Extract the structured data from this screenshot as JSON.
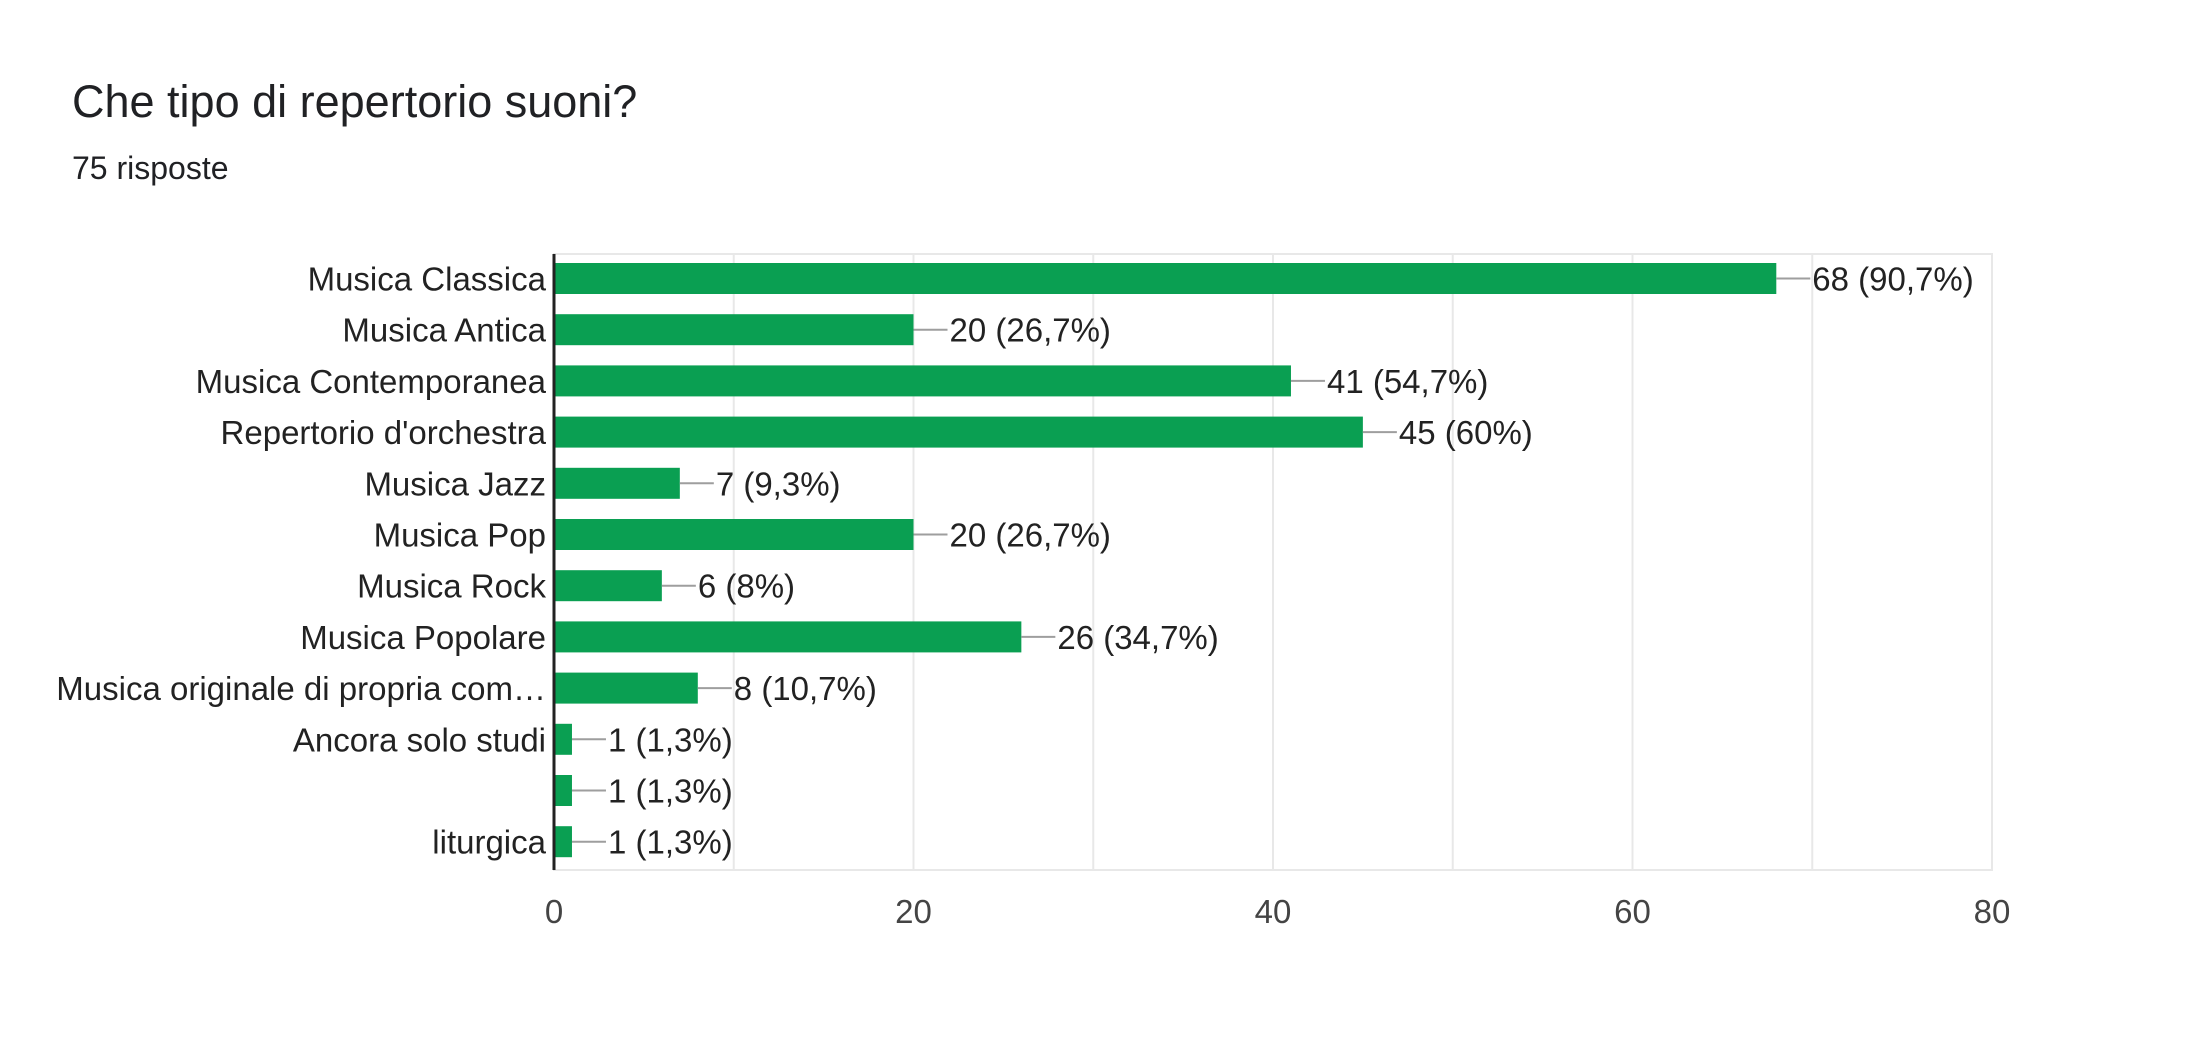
{
  "header": {
    "title": "Che tipo di repertorio suoni?",
    "subtitle": "75 risposte"
  },
  "colors": {
    "bar": "#0a9f52",
    "grid": "#e8e8e8",
    "axis": "#222222",
    "leader": "#9e9e9e"
  },
  "chart_data": {
    "type": "bar",
    "orientation": "horizontal",
    "title": "Che tipo di repertorio suoni?",
    "subtitle": "75 risposte",
    "categories": [
      "Musica Classica",
      "Musica Antica",
      "Musica Contemporanea",
      "Repertorio d'orchestra",
      "Musica Jazz",
      "Musica Pop",
      "Musica Rock",
      "Musica Popolare",
      "Musica originale di propria com…",
      "Ancora solo studi",
      "",
      "liturgica"
    ],
    "values": [
      68,
      20,
      41,
      45,
      7,
      20,
      6,
      26,
      8,
      1,
      1,
      1
    ],
    "value_labels": [
      "68 (90,7%)",
      "20 (26,7%)",
      "41 (54,7%)",
      "45 (60%)",
      "7 (9,3%)",
      "20 (26,7%)",
      "6 (8%)",
      "26 (34,7%)",
      "8 (10,7%)",
      "1 (1,3%)",
      "1 (1,3%)",
      "1 (1,3%)"
    ],
    "xlim": [
      0,
      80
    ],
    "xticks": [
      0,
      20,
      40,
      60,
      80
    ],
    "xtick_labels": [
      "0",
      "20",
      "40",
      "60",
      "80"
    ],
    "grid": true
  }
}
